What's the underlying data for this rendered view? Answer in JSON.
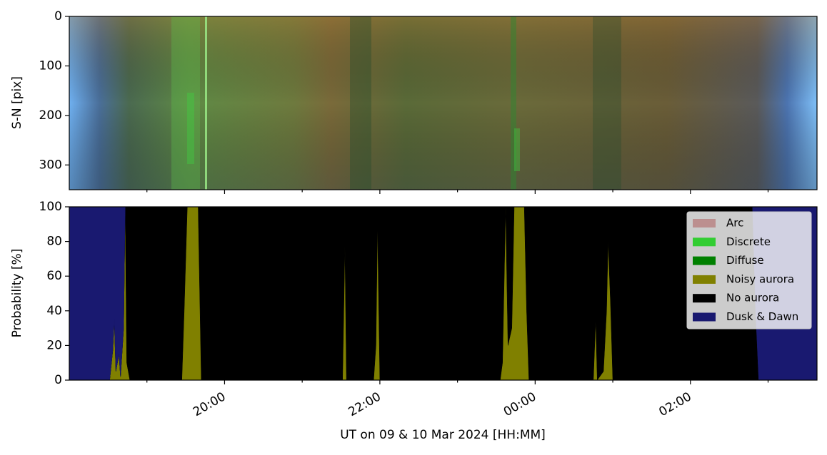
{
  "chart_data": [
    {
      "type": "image",
      "ylabel": "S-N [pix]",
      "ylim": [
        350,
        0
      ],
      "yticks": [
        0,
        100,
        200,
        300
      ]
    },
    {
      "type": "stackplot",
      "ylabel": "Probability [%]",
      "xlabel": "UT on 09 & 10 Mar 2024 [HH:MM]",
      "xlim": [
        18.0,
        27.63
      ],
      "xticks": [
        {
          "value": 20,
          "label": "20:00"
        },
        {
          "value": 22,
          "label": "22:00"
        },
        {
          "value": 24,
          "label": "00:00"
        },
        {
          "value": 26,
          "label": "02:00"
        }
      ],
      "xminorticks": [
        19,
        21,
        23,
        25,
        27
      ],
      "ylim": [
        0,
        100
      ],
      "yticks": [
        0,
        20,
        40,
        60,
        80,
        100
      ],
      "legend": "upper right",
      "x": [
        18.0,
        18.52,
        18.56,
        18.58,
        18.6,
        18.64,
        18.66,
        18.7,
        18.72,
        18.74,
        18.78,
        19.45,
        19.48,
        19.52,
        19.66,
        19.7,
        21.52,
        21.55,
        21.57,
        21.92,
        21.95,
        21.97,
        22.0,
        23.55,
        23.58,
        23.62,
        23.65,
        23.7,
        23.73,
        23.86,
        23.89,
        23.92,
        24.75,
        24.78,
        24.8,
        24.88,
        24.92,
        24.94,
        24.97,
        25.0,
        26.8,
        26.84,
        26.88,
        27.63
      ],
      "series": [
        {
          "name": "Arc",
          "color": "#bc8f8f",
          "values": [
            0,
            0,
            0,
            0,
            0,
            0,
            0,
            0,
            0,
            0,
            0,
            0,
            0,
            0,
            0,
            0,
            0,
            0,
            0,
            0,
            0,
            0,
            0,
            0,
            0,
            0,
            0,
            0,
            0,
            0,
            0,
            0,
            0,
            0,
            0,
            0,
            0,
            0,
            0,
            0,
            0,
            0,
            0,
            0
          ]
        },
        {
          "name": "Discrete",
          "color": "#32cd32",
          "values": [
            0,
            0,
            0,
            0,
            0,
            0,
            0,
            0,
            0,
            0,
            0,
            0,
            0,
            0,
            0,
            0,
            0,
            0,
            0,
            0,
            0,
            0,
            0,
            0,
            0,
            0,
            0,
            0,
            0,
            0,
            0,
            0,
            0,
            0,
            0,
            0,
            0,
            0,
            0,
            0,
            0,
            0,
            0,
            0
          ]
        },
        {
          "name": "Diffuse",
          "color": "#008000",
          "values": [
            0,
            0,
            0,
            0,
            0,
            0,
            0,
            0,
            0,
            0,
            0,
            0,
            0,
            0,
            0,
            0,
            0,
            0,
            0,
            0,
            0,
            0,
            0,
            0,
            0,
            0,
            0,
            0,
            0,
            0,
            0,
            0,
            0,
            0,
            0,
            0,
            0,
            0,
            0,
            0,
            0,
            0,
            0,
            0
          ]
        },
        {
          "name": "Noisy aurora",
          "color": "#808000",
          "values": [
            0,
            0,
            17,
            35,
            5,
            15,
            2,
            30,
            100,
            10,
            0,
            0,
            40,
            100,
            100,
            0,
            0,
            77,
            0,
            0,
            20,
            90,
            0,
            0,
            10,
            100,
            20,
            30,
            100,
            100,
            40,
            0,
            0,
            35,
            0,
            5,
            40,
            80,
            45,
            0,
            0,
            0,
            0,
            0
          ]
        },
        {
          "name": "No aurora",
          "color": "#000000",
          "values": [
            0,
            0,
            0,
            0,
            0,
            0,
            0,
            0,
            0,
            90,
            100,
            100,
            60,
            0,
            0,
            100,
            100,
            23,
            100,
            100,
            80,
            10,
            100,
            100,
            90,
            0,
            80,
            70,
            0,
            0,
            60,
            100,
            100,
            65,
            100,
            95,
            60,
            20,
            55,
            100,
            100,
            40,
            0,
            0
          ]
        },
        {
          "name": "Dusk & Dawn",
          "color": "#191970",
          "values": [
            100,
            100,
            83,
            65,
            95,
            85,
            98,
            70,
            0,
            0,
            0,
            0,
            0,
            0,
            0,
            0,
            0,
            0,
            0,
            0,
            0,
            0,
            0,
            0,
            0,
            0,
            0,
            0,
            0,
            0,
            0,
            0,
            0,
            0,
            0,
            0,
            0,
            0,
            0,
            0,
            0,
            60,
            100,
            100
          ]
        }
      ]
    }
  ]
}
